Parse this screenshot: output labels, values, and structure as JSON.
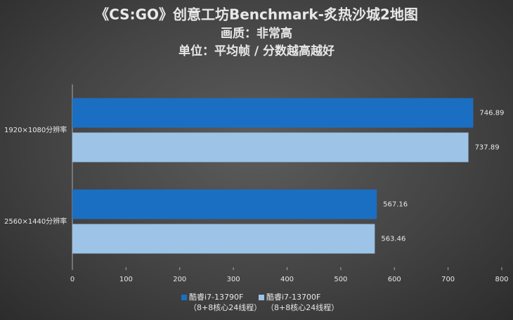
{
  "chart_data": {
    "type": "bar",
    "orientation": "horizontal",
    "title": "《CS:GO》创意工坊Benchmark-炙热沙城2地图",
    "subtitle": "画质：非常高",
    "subtitle2": "单位：平均帧 / 分数越高越好",
    "categories": [
      "1920×1080分辨率",
      "2560×1440分辨率"
    ],
    "series": [
      {
        "name": "酷睿i7-13790F\n（8+8核心24线程）",
        "color": "#1b6fc2",
        "values": [
          746.89,
          567.16
        ]
      },
      {
        "name": "酷睿i7-13700F\n（8+8核心24线程）",
        "color": "#9dc3e6",
        "values": [
          737.89,
          563.46
        ]
      }
    ],
    "xlim": [
      0,
      800
    ],
    "xticks": [
      0,
      100,
      200,
      300,
      400,
      500,
      600,
      700,
      800
    ],
    "grid": false,
    "legend": "bottom"
  }
}
